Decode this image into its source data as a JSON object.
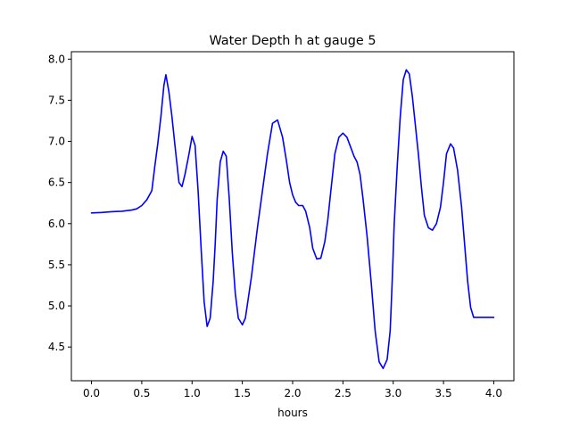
{
  "chart_data": {
    "type": "line",
    "title": "Water Depth h at gauge 5",
    "xlabel": "hours",
    "ylabel": "",
    "xlim": [
      -0.2,
      4.2
    ],
    "ylim": [
      4.09,
      8.09
    ],
    "x_ticks": [
      0.0,
      0.5,
      1.0,
      1.5,
      2.0,
      2.5,
      3.0,
      3.5,
      4.0
    ],
    "x_tick_labels": [
      "0.0",
      "0.5",
      "1.0",
      "1.5",
      "2.0",
      "2.5",
      "3.0",
      "3.5",
      "4.0"
    ],
    "y_ticks": [
      4.5,
      5.0,
      5.5,
      6.0,
      6.5,
      7.0,
      7.5,
      8.0
    ],
    "y_tick_labels": [
      "4.5",
      "5.0",
      "5.5",
      "6.0",
      "6.5",
      "7.0",
      "7.5",
      "8.0"
    ],
    "grid": false,
    "series": [
      {
        "color": "#0000ff",
        "x": [
          0.0,
          0.1,
          0.2,
          0.3,
          0.4,
          0.45,
          0.5,
          0.55,
          0.6,
          0.63,
          0.66,
          0.69,
          0.72,
          0.74,
          0.77,
          0.8,
          0.83,
          0.87,
          0.9,
          0.93,
          0.97,
          1.0,
          1.03,
          1.06,
          1.09,
          1.12,
          1.15,
          1.18,
          1.21,
          1.23,
          1.25,
          1.28,
          1.31,
          1.34,
          1.37,
          1.4,
          1.43,
          1.46,
          1.5,
          1.53,
          1.56,
          1.59,
          1.62,
          1.65,
          1.7,
          1.75,
          1.8,
          1.85,
          1.9,
          1.94,
          1.97,
          2.0,
          2.03,
          2.06,
          2.1,
          2.13,
          2.17,
          2.2,
          2.24,
          2.28,
          2.32,
          2.35,
          2.38,
          2.42,
          2.46,
          2.5,
          2.54,
          2.58,
          2.61,
          2.64,
          2.67,
          2.7,
          2.74,
          2.78,
          2.82,
          2.86,
          2.9,
          2.94,
          2.97,
          2.99,
          3.01,
          3.04,
          3.07,
          3.1,
          3.13,
          3.16,
          3.19,
          3.22,
          3.25,
          3.28,
          3.31,
          3.35,
          3.39,
          3.43,
          3.47,
          3.5,
          3.53,
          3.57,
          3.6,
          3.64,
          3.68,
          3.71,
          3.74,
          3.77,
          3.8,
          3.84,
          3.88,
          3.92,
          3.96,
          4.0
        ],
        "values": [
          6.13,
          6.135,
          6.145,
          6.15,
          6.165,
          6.18,
          6.22,
          6.29,
          6.4,
          6.7,
          6.98,
          7.3,
          7.68,
          7.81,
          7.6,
          7.3,
          6.95,
          6.5,
          6.45,
          6.6,
          6.85,
          7.06,
          6.95,
          6.4,
          5.7,
          5.05,
          4.75,
          4.85,
          5.3,
          5.75,
          6.3,
          6.75,
          6.88,
          6.82,
          6.3,
          5.65,
          5.15,
          4.85,
          4.77,
          4.85,
          5.1,
          5.35,
          5.65,
          5.95,
          6.4,
          6.85,
          7.22,
          7.26,
          7.05,
          6.75,
          6.5,
          6.35,
          6.26,
          6.22,
          6.22,
          6.15,
          5.95,
          5.7,
          5.57,
          5.58,
          5.78,
          6.05,
          6.4,
          6.85,
          7.05,
          7.1,
          7.05,
          6.92,
          6.82,
          6.75,
          6.6,
          6.3,
          5.85,
          5.3,
          4.7,
          4.32,
          4.24,
          4.35,
          4.7,
          5.3,
          6.0,
          6.7,
          7.3,
          7.75,
          7.87,
          7.82,
          7.55,
          7.2,
          6.85,
          6.45,
          6.1,
          5.95,
          5.92,
          6.0,
          6.2,
          6.5,
          6.85,
          6.97,
          6.92,
          6.65,
          6.2,
          5.75,
          5.3,
          4.98,
          4.86,
          4.86,
          4.86,
          4.86,
          4.86,
          4.86
        ]
      }
    ]
  }
}
